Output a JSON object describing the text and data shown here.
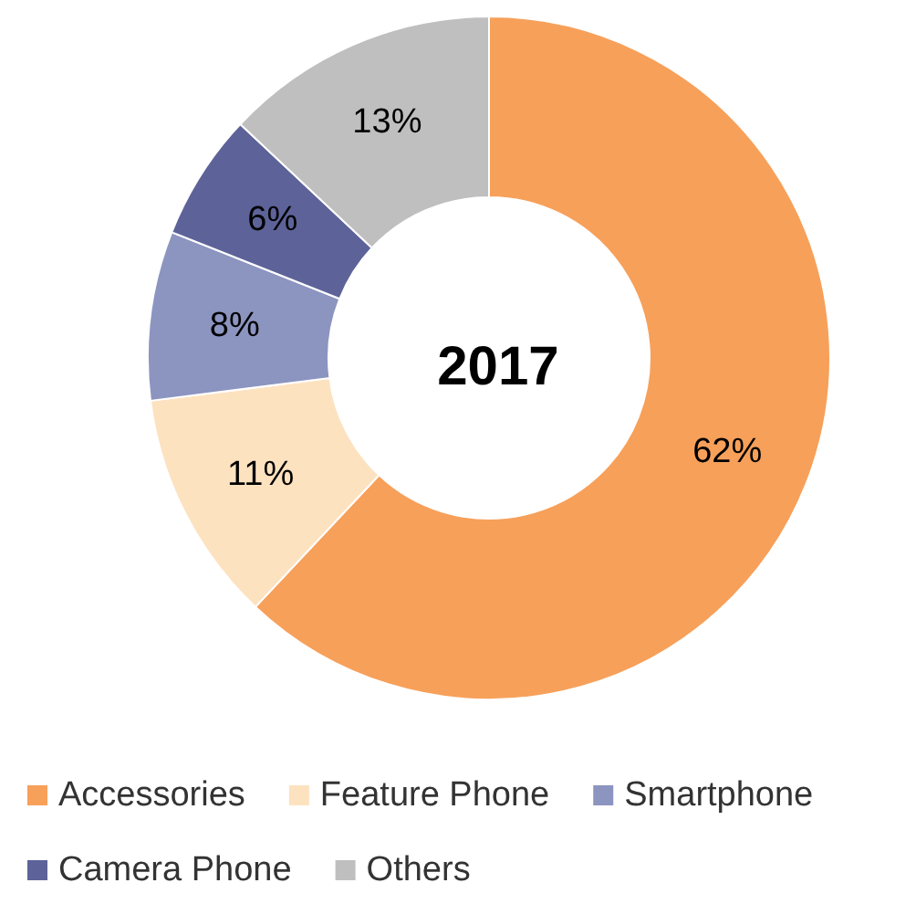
{
  "chart_data": {
    "type": "donut",
    "title": "2017",
    "categories": [
      "Accessories",
      "Feature Phone",
      "Smartphone",
      "Camera Phone",
      "Others"
    ],
    "values": [
      62,
      11,
      8,
      6,
      13
    ],
    "colors": [
      "#f7a05a",
      "#fde2c0",
      "#8c94c0",
      "#5d6399",
      "#bfbfbf"
    ],
    "value_labels": [
      "62%",
      "11%",
      "8%",
      "6%",
      "13%"
    ],
    "legend": "bottom"
  }
}
